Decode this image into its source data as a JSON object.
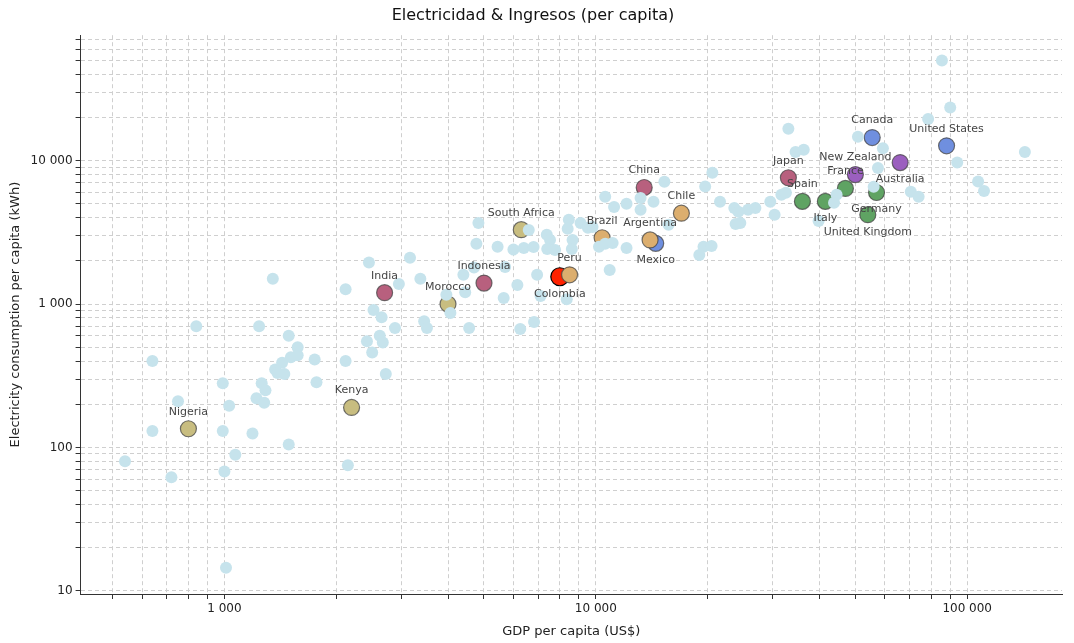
{
  "chart_data": {
    "type": "scatter",
    "title": "Electricidad & Ingresos (per capita)",
    "xlabel": "GDP per capita (US$)",
    "ylabel": "Electricity consumption per capita (kWh)",
    "log": "xy",
    "grid": true,
    "marker": "circle",
    "xlim": [
      410,
      180000
    ],
    "ylim": [
      9.5,
      75000
    ],
    "xticks": [
      {
        "value": 500,
        "label": null
      },
      {
        "value": 600,
        "label": null
      },
      {
        "value": 700,
        "label": null
      },
      {
        "value": 800,
        "label": null
      },
      {
        "value": 900,
        "label": null
      },
      {
        "value": 1000,
        "label": "1 000"
      },
      {
        "value": 2000,
        "label": null
      },
      {
        "value": 3000,
        "label": null
      },
      {
        "value": 4000,
        "label": null
      },
      {
        "value": 5000,
        "label": null
      },
      {
        "value": 6000,
        "label": null
      },
      {
        "value": 7000,
        "label": null
      },
      {
        "value": 8000,
        "label": null
      },
      {
        "value": 9000,
        "label": null
      },
      {
        "value": 10000,
        "label": "10 000"
      },
      {
        "value": 20000,
        "label": null
      },
      {
        "value": 30000,
        "label": null
      },
      {
        "value": 40000,
        "label": null
      },
      {
        "value": 50000,
        "label": null
      },
      {
        "value": 60000,
        "label": null
      },
      {
        "value": 70000,
        "label": null
      },
      {
        "value": 80000,
        "label": null
      },
      {
        "value": 90000,
        "label": null
      },
      {
        "value": 100000,
        "label": "100 000"
      }
    ],
    "yticks": [
      10,
      {
        "value": 20,
        "label": null
      },
      {
        "value": 30,
        "label": null
      },
      {
        "value": 40,
        "label": null
      },
      {
        "value": 50,
        "label": null
      },
      {
        "value": 60,
        "label": null
      },
      {
        "value": 70,
        "label": null
      },
      {
        "value": 80,
        "label": null
      },
      {
        "value": 90,
        "label": null
      },
      100,
      {
        "value": 200,
        "label": null
      },
      {
        "value": 300,
        "label": null
      },
      {
        "value": 400,
        "label": null
      },
      {
        "value": 500,
        "label": null
      },
      {
        "value": 600,
        "label": null
      },
      {
        "value": 700,
        "label": null
      },
      {
        "value": 800,
        "label": null
      },
      {
        "value": 900,
        "label": null
      },
      {
        "value": 1000,
        "label": "1 000"
      },
      {
        "value": 2000,
        "label": null
      },
      {
        "value": 3000,
        "label": null
      },
      {
        "value": 4000,
        "label": null
      },
      {
        "value": 5000,
        "label": null
      },
      {
        "value": 6000,
        "label": null
      },
      {
        "value": 7000,
        "label": null
      },
      {
        "value": 8000,
        "label": null
      },
      {
        "value": 9000,
        "label": null
      },
      {
        "value": 10000,
        "label": "10 000"
      },
      {
        "value": 20000,
        "label": null
      },
      {
        "value": 30000,
        "label": null
      },
      {
        "value": 40000,
        "label": null
      },
      {
        "value": 50000,
        "label": null
      },
      {
        "value": 60000,
        "label": null
      },
      {
        "value": 70000,
        "label": null
      }
    ],
    "series": [
      {
        "color": "#c6e3ec",
        "x": [
          540,
          640,
          640,
          720,
          750,
          840,
          990,
          990,
          1000,
          1010,
          1030,
          1070,
          1240,
          1190,
          1220,
          1260,
          1280,
          1290,
          1350,
          1370,
          1390,
          1430,
          1450,
          1490,
          1490,
          1510,
          1575,
          1575,
          1750,
          1770,
          2120,
          2120,
          2150,
          2450,
          2420,
          2500,
          2520,
          2620,
          2650,
          2670,
          2720,
          2880,
          2950,
          3160,
          3370,
          3960,
          4060,
          3450,
          3510,
          4560,
          4400,
          4450,
          4700,
          4770,
          4830,
          5440,
          5700,
          5650,
          6150,
          6260,
          6820,
          6950,
          7100,
          8350,
          6000,
          6400,
          6800,
          6600,
          7380,
          7530,
          7400,
          7770,
          8460,
          8400,
          8660,
          8620,
          9100,
          9520,
          9800,
          10200,
          10600,
          11100,
          12100,
          10900,
          10600,
          11200,
          12100,
          13200,
          13200,
          14300,
          15300,
          15700,
          19700,
          20600,
          21600,
          23600,
          23800,
          19500,
          20500,
          19000,
          85500,
          90000,
          78500,
          143000,
          94000,
          107000,
          111000,
          33000,
          34500,
          36300,
          50800,
          59300,
          57500,
          70500,
          74000,
          29500,
          31600,
          32500,
          30300,
          39800,
          44500,
          43800,
          56000,
          24200,
          25700,
          26900,
          24500
        ],
        "values": [
          80,
          400,
          130,
          62,
          210,
          700,
          280,
          130,
          68,
          14.5,
          195,
          89,
          700,
          125,
          220,
          280,
          205,
          250,
          1500,
          350,
          330,
          390,
          325,
          600,
          105,
          425,
          500,
          440,
          410,
          285,
          1270,
          400,
          75,
          1950,
          550,
          460,
          910,
          600,
          810,
          540,
          325,
          680,
          1380,
          2100,
          1500,
          1160,
          865,
          760,
          680,
          680,
          1600,
          1210,
          1800,
          2630,
          3680,
          2510,
          1810,
          1100,
          1360,
          670,
          750,
          1600,
          1140,
          1080,
          2400,
          2460,
          2500,
          3290,
          3040,
          2800,
          2420,
          2380,
          3870,
          3350,
          2800,
          2420,
          3680,
          3400,
          3450,
          2510,
          2630,
          2670,
          2460,
          1730,
          5600,
          4760,
          5000,
          5500,
          4540,
          5160,
          7120,
          3570,
          6600,
          8250,
          5160,
          4680,
          3620,
          2510,
          2540,
          2200,
          50000,
          23500,
          19500,
          11500,
          9700,
          7150,
          6150,
          16700,
          11500,
          11900,
          14700,
          12200,
          8900,
          6070,
          5600,
          5160,
          5780,
          5970,
          4190,
          3800,
          5780,
          5080,
          6580,
          4400,
          4540,
          4680,
          3680
        ]
      },
      {
        "x": [
          800,
          2200,
          2700,
          4000,
          5000,
          6300,
          8500,
          10400,
          13500,
          14500,
          14000,
          17000,
          33000,
          36000,
          41500,
          47000,
          50000,
          57000,
          54000,
          55500,
          66000,
          88000
        ],
        "values": [
          135,
          190,
          1200,
          1000,
          1400,
          3300,
          1600,
          2900,
          6500,
          2650,
          2800,
          4300,
          7600,
          5200,
          5200,
          6400,
          8000,
          6000,
          4200,
          14500,
          9700,
          12700
        ],
        "colors": [
          "#c8bd80",
          "#c8bd80",
          "#b8607e",
          "#c8bd80",
          "#b8607e",
          "#c8bd80",
          "#dcae6e",
          "#dcae6e",
          "#b8607e",
          "#6f8fdf",
          "#dcae6e",
          "#dcae6e",
          "#b8607e",
          "#5fa363",
          "#5fa363",
          "#5fa363",
          "#9b5fbf",
          "#5fa363",
          "#5fa363",
          "#6f8fdf",
          "#9b5fbf",
          "#6f8fdf"
        ]
      },
      {
        "color": "#ff2200",
        "x": [
          8000
        ],
        "values": [
          1550
        ]
      }
    ],
    "annotations": [
      {
        "text": "Nigeria",
        "x": 800,
        "y": 135
      },
      {
        "text": "Kenya",
        "x": 2200,
        "y": 190
      },
      {
        "text": "India",
        "x": 2700,
        "y": 1200
      },
      {
        "text": "Morocco",
        "x": 4000,
        "y": 1000
      },
      {
        "text": "Indonesia",
        "x": 5000,
        "y": 1400
      },
      {
        "text": "South Africa",
        "x": 6300,
        "y": 3300
      },
      {
        "text": "Peru",
        "x": 8500,
        "y": 1600
      },
      {
        "text": "Brazil",
        "x": 10400,
        "y": 2900
      },
      {
        "text": "China",
        "x": 13500,
        "y": 6500
      },
      {
        "text": "Argentina",
        "x": 14000,
        "y": 2800
      },
      {
        "text": "Mexico",
        "x": 14500,
        "y": 2650
      },
      {
        "text": "Chile",
        "x": 17000,
        "y": 4300
      },
      {
        "text": "Japan",
        "x": 33000,
        "y": 7600
      },
      {
        "text": "Spain",
        "x": 36000,
        "y": 5200
      },
      {
        "text": "Italy",
        "x": 41500,
        "y": 5200
      },
      {
        "text": "France",
        "x": 47000,
        "y": 6400
      },
      {
        "text": "New Zealand",
        "x": 50000,
        "y": 8000
      },
      {
        "text": "Germany",
        "x": 57000,
        "y": 6000
      },
      {
        "text": "United Kingdom",
        "x": 54000,
        "y": 4200
      },
      {
        "text": "Canada",
        "x": 55500,
        "y": 14500
      },
      {
        "text": "Australia",
        "x": 66000,
        "y": 9700
      },
      {
        "text": "United States",
        "x": 88000,
        "y": 12700
      },
      {
        "text": "Colombia",
        "x": 8000,
        "y": 1550
      }
    ]
  }
}
